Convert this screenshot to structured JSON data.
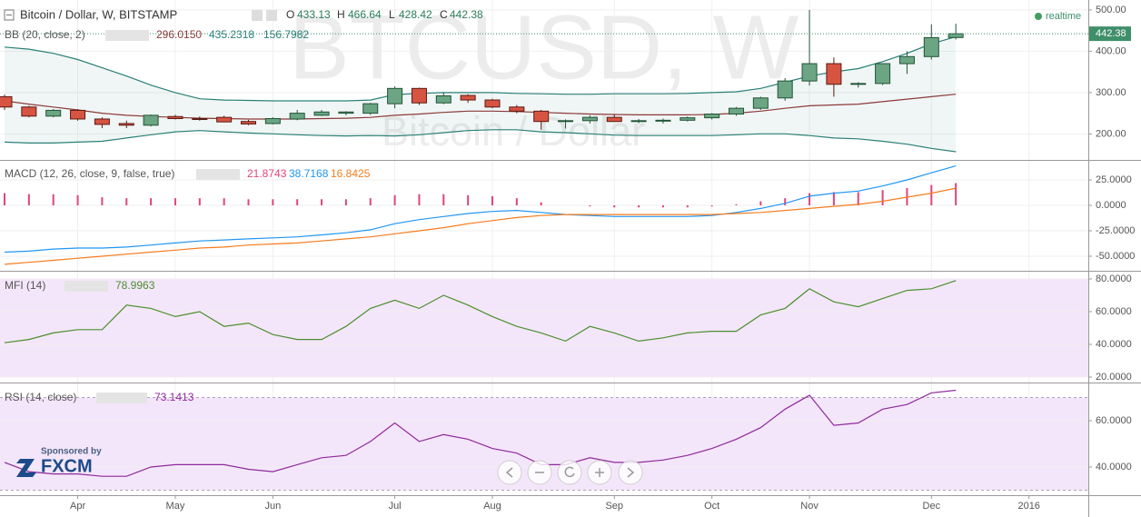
{
  "chart_data": [
    {
      "type": "candlestick",
      "title": "Bitcoin / Dollar, W, BITSTAMP",
      "watermark": "BTCUSD, W",
      "watermark_subtitle": "Bitcoin / Dollar",
      "realtime": "realtime",
      "ohlc_labels": [
        "O",
        "H",
        "L",
        "C"
      ],
      "indicator": "BB (20, close, 2)",
      "categories": [
        null,
        null,
        null,
        "Apr",
        null,
        null,
        null,
        "May",
        null,
        null,
        null,
        "Jun",
        null,
        null,
        null,
        null,
        "Jul",
        null,
        null,
        null,
        "Aug",
        null,
        null,
        null,
        null,
        "Sep",
        null,
        null,
        null,
        "Oct",
        null,
        null,
        null,
        "Nov",
        null,
        null,
        null,
        null,
        "Dec",
        null,
        null,
        null,
        "2016",
        null,
        null
      ],
      "open": [
        290,
        265,
        243,
        257,
        236,
        225,
        221,
        242,
        237,
        240,
        230,
        225,
        236,
        245,
        250,
        250,
        273,
        310,
        275,
        293,
        282,
        265,
        255,
        230,
        232,
        240,
        230,
        231,
        233,
        239,
        248,
        262,
        287,
        328,
        370,
        320,
        322,
        370,
        387,
        433.13,
        null,
        null,
        null,
        null,
        null
      ],
      "high": [
        295,
        268,
        260,
        260,
        240,
        232,
        247,
        246,
        242,
        244,
        234,
        240,
        258,
        258,
        255,
        275,
        315,
        312,
        300,
        296,
        285,
        270,
        258,
        235,
        245,
        248,
        236,
        237,
        242,
        250,
        265,
        290,
        335,
        500,
        385,
        325,
        370,
        400,
        465,
        466.64,
        null,
        null,
        null,
        null,
        null
      ],
      "low": [
        258,
        240,
        240,
        232,
        214,
        214,
        218,
        235,
        232,
        228,
        221,
        223,
        233,
        243,
        245,
        246,
        262,
        270,
        272,
        275,
        262,
        250,
        210,
        213,
        225,
        230,
        226,
        225,
        230,
        235,
        244,
        258,
        280,
        317,
        290,
        312,
        318,
        345,
        380,
        428.42,
        null,
        null,
        null,
        null,
        null
      ],
      "close": [
        265,
        243,
        257,
        236,
        223,
        221,
        245,
        237,
        235,
        229,
        224,
        237,
        250,
        253,
        253,
        273,
        310,
        275,
        292,
        282,
        265,
        255,
        230,
        232,
        240,
        230,
        232,
        233,
        239,
        248,
        262,
        287,
        328,
        370,
        320,
        322,
        370,
        387,
        433,
        442.38,
        null,
        null,
        null,
        null,
        null
      ],
      "up_color": "#6ba583",
      "down_color": "#d75442",
      "series": [
        {
          "color": "#8b3a3a",
          "values": [
            280,
            272,
            265,
            258,
            250,
            245,
            242,
            240,
            238,
            237,
            236,
            236,
            236,
            237,
            238,
            240,
            245,
            248,
            252,
            255,
            255,
            254,
            252,
            250,
            248,
            247,
            246,
            246,
            246,
            247,
            250,
            255,
            262,
            268,
            270,
            272,
            278,
            284,
            290,
            296.015,
            null,
            null,
            null,
            null,
            null
          ],
          "value_labels": [
            null,
            null,
            null,
            null,
            null,
            null,
            null,
            null,
            null,
            null,
            null,
            null,
            null,
            null,
            null,
            null,
            null,
            null,
            null,
            null,
            null,
            null,
            null,
            null,
            null,
            null,
            null,
            null,
            null,
            null,
            null,
            null,
            null,
            null,
            null,
            null,
            null,
            null,
            null,
            "296.0150",
            null,
            null,
            null,
            null,
            null
          ]
        },
        {
          "color": "#2a8078",
          "values": [
            410,
            405,
            395,
            380,
            360,
            340,
            318,
            300,
            285,
            282,
            281,
            280,
            280,
            280,
            280,
            282,
            295,
            298,
            300,
            300,
            300,
            298,
            297,
            296,
            296,
            297,
            297,
            297,
            298,
            300,
            302,
            310,
            325,
            340,
            350,
            358,
            375,
            395,
            418,
            435.2318,
            null,
            null,
            null,
            null,
            null
          ]
        },
        {
          "color": "#2a8078",
          "values": [
            180,
            178,
            178,
            180,
            182,
            190,
            198,
            205,
            208,
            205,
            202,
            200,
            198,
            196,
            195,
            196,
            195,
            198,
            203,
            208,
            210,
            210,
            205,
            203,
            200,
            197,
            196,
            196,
            196,
            196,
            198,
            200,
            200,
            196,
            190,
            188,
            182,
            175,
            165,
            156.7982,
            null,
            null,
            null,
            null,
            null
          ]
        }
      ],
      "ylim": [
        137,
        524
      ],
      "yticks": [
        {
          "value": 200,
          "label": "200.00"
        },
        {
          "value": 300,
          "label": "300.00"
        },
        {
          "value": 400,
          "label": "400.00"
        },
        {
          "value": 500,
          "label": "500.00"
        }
      ],
      "grid": true
    },
    {
      "type": "line",
      "title": "MACD (12, 26, close, 9, false, true)",
      "series": [
        {
          "kind": "histogram",
          "color": "#e0457b",
          "values": [
            12,
            11,
            11,
            10,
            8,
            7,
            7,
            7,
            7,
            7,
            6,
            6,
            6,
            6,
            6,
            7,
            10,
            11,
            11,
            10,
            9,
            7,
            3,
            0,
            -1,
            -2,
            -2,
            -2,
            -2,
            -1,
            1,
            4,
            7,
            12,
            13,
            13,
            15,
            17,
            20,
            21.8743,
            null,
            null,
            null,
            null,
            null
          ]
        },
        {
          "color": "#2196f3",
          "values": [
            -46,
            -45,
            -43,
            -42,
            -42,
            -41,
            -39,
            -37,
            -35,
            -34,
            -33,
            -32,
            -31,
            -29,
            -27,
            -24,
            -18,
            -14,
            -11,
            -8,
            -6,
            -5,
            -7,
            -9,
            -10,
            -11,
            -11,
            -11,
            -11,
            -10,
            -7,
            -3,
            2,
            9,
            12,
            14,
            19,
            25,
            32,
            38.7168,
            null,
            null,
            null,
            null,
            null
          ]
        },
        {
          "color": "#f57c1f",
          "values": [
            -58,
            -56,
            -54,
            -52,
            -50,
            -48,
            -46,
            -44,
            -42,
            -41,
            -39,
            -38,
            -37,
            -35,
            -33,
            -31,
            -28,
            -25,
            -22,
            -18,
            -15,
            -12,
            -10,
            -9,
            -9,
            -9,
            -9,
            -9,
            -9,
            -9,
            -8,
            -7,
            -5,
            -3,
            -1,
            1,
            4,
            8,
            12,
            16.8425,
            null,
            null,
            null,
            null,
            null
          ]
        }
      ],
      "ylim": [
        -64.3,
        43.75
      ],
      "yticks": [
        {
          "value": 25,
          "label": "25.0000"
        },
        {
          "value": 0,
          "label": "0.0000"
        },
        {
          "value": -25,
          "label": "-25.0000"
        },
        {
          "value": -50,
          "label": "-50.0000"
        }
      ],
      "grid": true
    },
    {
      "type": "line",
      "title": "MFI (14)",
      "band": [
        20,
        80
      ],
      "band_color": "#f4e6fa",
      "series": [
        {
          "color": "#4a8f2e",
          "values": [
            41,
            43,
            47,
            49,
            49,
            64,
            62,
            57,
            60,
            51,
            53,
            46,
            43,
            43,
            51,
            62,
            67,
            62,
            70,
            64,
            57,
            51,
            47,
            42,
            51,
            47,
            42,
            44,
            47,
            48,
            48,
            58,
            62,
            74,
            66,
            63,
            68,
            73,
            74,
            78.9963,
            null,
            null,
            null,
            null,
            null
          ]
        }
      ],
      "ylim": [
        16.67,
        84.44
      ],
      "yticks": [
        {
          "value": 20,
          "label": "20.0000"
        },
        {
          "value": 40,
          "label": "40.0000"
        },
        {
          "value": 60,
          "label": "60.0000"
        },
        {
          "value": 80,
          "label": "80.0000"
        }
      ],
      "grid": true
    },
    {
      "type": "line",
      "title": "RSI (14, close)",
      "band": [
        30,
        70
      ],
      "band_color": "#f4e6fa",
      "series": [
        {
          "color": "#8e2a9c",
          "values": [
            42,
            38,
            37,
            37,
            36,
            36,
            40,
            41,
            41,
            41,
            39,
            38,
            41,
            44,
            45,
            51,
            59,
            51,
            54,
            52,
            48,
            46,
            41,
            41,
            44,
            42,
            42,
            43,
            45,
            48,
            52,
            57,
            65,
            71,
            58,
            59,
            65,
            67,
            72,
            73.1413,
            null,
            null,
            null,
            null,
            null
          ]
        }
      ],
      "ylim": [
        27.84,
        76.08
      ],
      "yticks": [
        {
          "value": 40,
          "label": "40.0000"
        },
        {
          "value": 60,
          "label": "60.0000"
        }
      ],
      "grid": true
    }
  ],
  "sponsor": {
    "text": "Sponsored by",
    "name": "FXCM"
  }
}
